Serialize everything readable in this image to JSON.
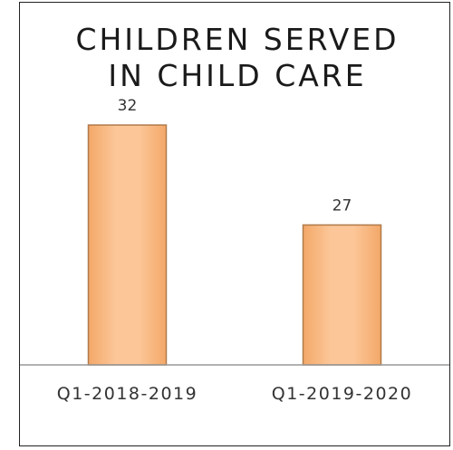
{
  "chart_data": {
    "type": "bar",
    "title_lines": [
      "CHILDREN SERVED",
      "IN CHILD CARE"
    ],
    "categories": [
      "Q1-2018-2019",
      "Q1-2019-2020"
    ],
    "values": [
      32,
      27
    ],
    "value_labels": [
      "32",
      "27"
    ],
    "xlabel": "",
    "ylabel": "",
    "ylim": [
      20,
      33
    ],
    "grid": false,
    "legend": "none",
    "colors": {
      "bar_fill": "#fbbf8a",
      "bar_edge": "#b07a4a",
      "axis": "#999999"
    }
  }
}
